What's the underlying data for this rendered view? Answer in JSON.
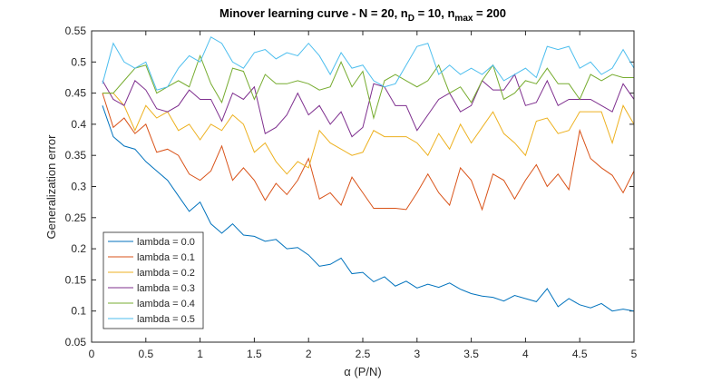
{
  "chart_data": {
    "type": "line",
    "title_parts": [
      "Minover learning curve - N = 20, n",
      "D",
      " = 10, n",
      "max",
      " = 200"
    ],
    "xlabel": "α (P/N)",
    "ylabel": "Generalization error",
    "x": [
      0.1,
      0.2,
      0.3,
      0.4,
      0.5,
      0.6,
      0.7,
      0.8,
      0.9,
      1.0,
      1.1,
      1.2,
      1.3,
      1.4,
      1.5,
      1.6,
      1.7,
      1.8,
      1.9,
      2.0,
      2.1,
      2.2,
      2.3,
      2.4,
      2.5,
      2.6,
      2.7,
      2.8,
      2.9,
      3.0,
      3.1,
      3.2,
      3.3,
      3.4,
      3.5,
      3.6,
      3.7,
      3.8,
      3.9,
      4.0,
      4.1,
      4.2,
      4.3,
      4.4,
      4.5,
      4.6,
      4.7,
      4.8,
      4.9,
      5.0
    ],
    "series": [
      {
        "name": "lambda = 0.0",
        "color": "#0072BD",
        "values": [
          0.43,
          0.38,
          0.365,
          0.36,
          0.34,
          0.325,
          0.31,
          0.285,
          0.26,
          0.275,
          0.24,
          0.225,
          0.24,
          0.222,
          0.22,
          0.212,
          0.215,
          0.2,
          0.202,
          0.19,
          0.172,
          0.175,
          0.185,
          0.16,
          0.162,
          0.147,
          0.155,
          0.14,
          0.148,
          0.137,
          0.143,
          0.138,
          0.145,
          0.135,
          0.128,
          0.124,
          0.122,
          0.116,
          0.125,
          0.12,
          0.115,
          0.136,
          0.107,
          0.12,
          0.11,
          0.105,
          0.112,
          0.1,
          0.103,
          0.1
        ]
      },
      {
        "name": "lambda = 0.1",
        "color": "#D95319",
        "values": [
          0.45,
          0.395,
          0.41,
          0.385,
          0.4,
          0.355,
          0.36,
          0.35,
          0.32,
          0.31,
          0.325,
          0.365,
          0.31,
          0.33,
          0.31,
          0.278,
          0.305,
          0.287,
          0.31,
          0.345,
          0.28,
          0.29,
          0.27,
          0.315,
          0.29,
          0.265,
          0.265,
          0.265,
          0.263,
          0.29,
          0.32,
          0.29,
          0.27,
          0.33,
          0.31,
          0.263,
          0.32,
          0.31,
          0.28,
          0.31,
          0.335,
          0.3,
          0.32,
          0.295,
          0.39,
          0.345,
          0.33,
          0.318,
          0.29,
          0.325
        ]
      },
      {
        "name": "lambda = 0.2",
        "color": "#EDB120",
        "values": [
          0.45,
          0.45,
          0.43,
          0.39,
          0.43,
          0.41,
          0.42,
          0.39,
          0.4,
          0.375,
          0.4,
          0.39,
          0.415,
          0.4,
          0.355,
          0.37,
          0.34,
          0.32,
          0.34,
          0.33,
          0.39,
          0.37,
          0.36,
          0.35,
          0.355,
          0.39,
          0.38,
          0.38,
          0.38,
          0.37,
          0.35,
          0.385,
          0.36,
          0.4,
          0.37,
          0.395,
          0.42,
          0.385,
          0.37,
          0.35,
          0.405,
          0.41,
          0.385,
          0.39,
          0.42,
          0.42,
          0.42,
          0.37,
          0.43,
          0.4
        ]
      },
      {
        "name": "lambda = 0.3",
        "color": "#7E2F8E",
        "values": [
          0.47,
          0.44,
          0.43,
          0.47,
          0.455,
          0.425,
          0.42,
          0.43,
          0.455,
          0.44,
          0.44,
          0.405,
          0.45,
          0.44,
          0.46,
          0.385,
          0.395,
          0.415,
          0.45,
          0.415,
          0.43,
          0.4,
          0.42,
          0.38,
          0.395,
          0.465,
          0.46,
          0.43,
          0.43,
          0.39,
          0.415,
          0.44,
          0.45,
          0.42,
          0.43,
          0.47,
          0.455,
          0.455,
          0.48,
          0.43,
          0.435,
          0.47,
          0.43,
          0.44,
          0.44,
          0.44,
          0.43,
          0.42,
          0.465,
          0.44
        ]
      },
      {
        "name": "lambda = 0.4",
        "color": "#77AC30",
        "values": [
          0.45,
          0.45,
          0.47,
          0.49,
          0.495,
          0.45,
          0.46,
          0.47,
          0.46,
          0.51,
          0.465,
          0.435,
          0.49,
          0.485,
          0.44,
          0.48,
          0.465,
          0.465,
          0.47,
          0.465,
          0.455,
          0.46,
          0.5,
          0.46,
          0.485,
          0.41,
          0.47,
          0.48,
          0.47,
          0.46,
          0.47,
          0.495,
          0.45,
          0.46,
          0.435,
          0.47,
          0.495,
          0.44,
          0.45,
          0.47,
          0.465,
          0.49,
          0.465,
          0.465,
          0.44,
          0.48,
          0.47,
          0.48,
          0.475,
          0.475
        ]
      },
      {
        "name": "lambda = 0.5",
        "color": "#4DBEEE",
        "values": [
          0.465,
          0.53,
          0.5,
          0.49,
          0.5,
          0.455,
          0.46,
          0.49,
          0.51,
          0.5,
          0.54,
          0.53,
          0.5,
          0.49,
          0.515,
          0.52,
          0.505,
          0.515,
          0.51,
          0.53,
          0.51,
          0.48,
          0.515,
          0.49,
          0.495,
          0.47,
          0.46,
          0.465,
          0.495,
          0.525,
          0.53,
          0.48,
          0.495,
          0.48,
          0.49,
          0.48,
          0.495,
          0.47,
          0.48,
          0.49,
          0.475,
          0.525,
          0.52,
          0.525,
          0.49,
          0.5,
          0.48,
          0.49,
          0.52,
          0.49
        ]
      }
    ],
    "xlim": [
      0,
      5
    ],
    "xticks": [
      0,
      0.5,
      1,
      1.5,
      2,
      2.5,
      3,
      3.5,
      4,
      4.5,
      5
    ],
    "ylim": [
      0.05,
      0.55
    ],
    "yticks": [
      0.05,
      0.1,
      0.15,
      0.2,
      0.25,
      0.3,
      0.35,
      0.4,
      0.45,
      0.5,
      0.55
    ],
    "grid": false,
    "legend": "lower left"
  }
}
